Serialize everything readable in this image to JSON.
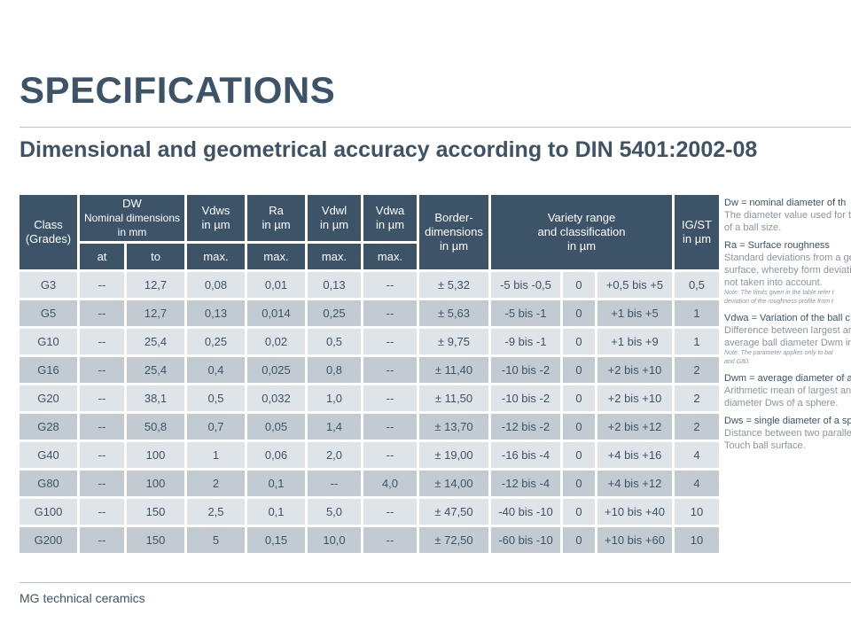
{
  "title": "SPECIFICATIONS",
  "subtitle": "Dimensional and geometrical accuracy according to DIN 5401:2002-08",
  "footer": "MG technical ceramics",
  "table": {
    "headers": {
      "class": [
        "Class",
        "(Grades)"
      ],
      "dw": [
        "DW",
        "Nominal dimensions",
        "in mm"
      ],
      "vdws": [
        "Vdws",
        "in µm"
      ],
      "ra": [
        "Ra",
        "in µm"
      ],
      "vdwl": [
        "Vdwl",
        "in µm"
      ],
      "vdwa": [
        "Vdwa",
        "in µm"
      ],
      "border": [
        "Border-",
        "dimensions",
        "in µm"
      ],
      "variety": [
        "Variety range",
        "and classification",
        "in µm"
      ],
      "igst": [
        "IG/ST",
        "in µm"
      ],
      "sub": [
        "at",
        "to",
        "max.",
        "max.",
        "max.",
        "max."
      ]
    },
    "rows": [
      [
        "G3",
        "--",
        "12,7",
        "0,08",
        "0,01",
        "0,13",
        "--",
        "± 5,32",
        "-5 bis -0,5",
        "0",
        "+0,5 bis +5",
        "0,5"
      ],
      [
        "G5",
        "--",
        "12,7",
        "0,13",
        "0,014",
        "0,25",
        "--",
        "± 5,63",
        "-5 bis -1",
        "0",
        "+1 bis +5",
        "1"
      ],
      [
        "G10",
        "--",
        "25,4",
        "0,25",
        "0,02",
        "0,5",
        "--",
        "± 9,75",
        "-9 bis -1",
        "0",
        "+1 bis +9",
        "1"
      ],
      [
        "G16",
        "--",
        "25,4",
        "0,4",
        "0,025",
        "0,8",
        "--",
        "± 11,40",
        "-10 bis -2",
        "0",
        "+2 bis +10",
        "2"
      ],
      [
        "G20",
        "--",
        "38,1",
        "0,5",
        "0,032",
        "1,0",
        "--",
        "± 11,50",
        "-10 bis -2",
        "0",
        "+2 bis +10",
        "2"
      ],
      [
        "G28",
        "--",
        "50,8",
        "0,7",
        "0,05",
        "1,4",
        "--",
        "± 13,70",
        "-12 bis -2",
        "0",
        "+2 bis +12",
        "2"
      ],
      [
        "G40",
        "--",
        "100",
        "1",
        "0,06",
        "2,0",
        "--",
        "± 19,00",
        "-16 bis -4",
        "0",
        "+4 bis +16",
        "4"
      ],
      [
        "G80",
        "--",
        "100",
        "2",
        "0,1",
        "--",
        "4,0",
        "± 14,00",
        "-12 bis -4",
        "0",
        "+4 bis +12",
        "4"
      ],
      [
        "G100",
        "--",
        "150",
        "2,5",
        "0,1",
        "5,0",
        "--",
        "± 47,50",
        "-40 bis -10",
        "0",
        "+10 bis +40",
        "10"
      ],
      [
        "G200",
        "--",
        "150",
        "5",
        "0,15",
        "10,0",
        "--",
        "± 72,50",
        "-60 bis -10",
        "0",
        "+10 bis +60",
        "10"
      ]
    ]
  },
  "sidebar": {
    "dw_term": "Dw = nominal diameter of th",
    "dw_desc": [
      "The diameter value used for t",
      "of a ball size."
    ],
    "ra_term": "Ra = Surface roughness",
    "ra_desc": [
      "Standard deviations from a ge",
      "surface, whereby form deviati",
      "not taken into account."
    ],
    "ra_note": [
      "Note: The limits given in the table refer t",
      "deviation of the roughness profile from t"
    ],
    "vdwa_term": "Vdwa = Variation of the ball c",
    "vdwa_desc": [
      "Difference between largest ar",
      "average ball diameter Dwm in"
    ],
    "vdwa_note": [
      "Note: The parameter applies only to bal",
      "and G80."
    ],
    "dwm_term": "Dwm = average diameter of a",
    "dwm_desc": [
      "Arithmetic mean of largest an",
      "diameter Dws of a sphere."
    ],
    "dws_term": "Dws = single diameter of a sp",
    "dws_desc": [
      "Distance between two paralle",
      "Touch ball surface."
    ]
  },
  "colors": {
    "header_bg": "#3d5468",
    "row_light": "#dfe4e8",
    "row_dark": "#c3cbd2",
    "text": "#3f5366"
  }
}
